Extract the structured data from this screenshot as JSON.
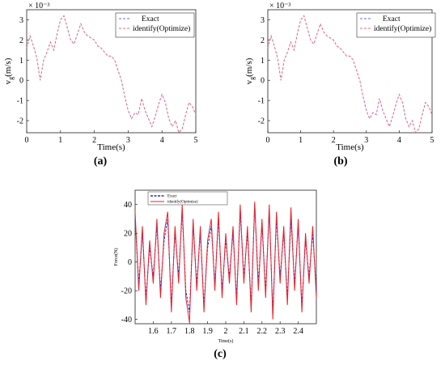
{
  "chart_data": [
    {
      "type": "line",
      "panel_label": "(a)",
      "ylabel_main": "v",
      "ylabel_sub": "g",
      "ylabel_unit": "(m/s)",
      "y_exponent": "× 10⁻³",
      "xlabel": "Time(s)",
      "xlim": [
        0,
        5
      ],
      "ylim": [
        -2.6,
        3.5
      ],
      "xticks": [
        0,
        1,
        2,
        3,
        4,
        5
      ],
      "yticks": [
        -2,
        -1,
        0,
        1,
        2,
        3
      ],
      "legend_position": "top-right",
      "series": [
        {
          "name": "Exact",
          "color": "#6a6af5",
          "style": "dashed",
          "x": [
            0,
            0.1,
            0.2,
            0.3,
            0.4,
            0.5,
            0.6,
            0.7,
            0.8,
            0.9,
            1.0,
            1.1,
            1.2,
            1.3,
            1.4,
            1.5,
            1.6,
            1.7,
            1.8,
            1.9,
            2.0,
            2.1,
            2.2,
            2.3,
            2.4,
            2.5,
            2.6,
            2.7,
            2.8,
            2.9,
            3.0,
            3.1,
            3.2,
            3.3,
            3.4,
            3.5,
            3.6,
            3.7,
            3.8,
            3.9,
            4.0,
            4.1,
            4.2,
            4.3,
            4.4,
            4.5,
            4.6,
            4.7,
            4.8,
            4.9,
            5.0
          ],
          "y": [
            1.6,
            2.2,
            1.7,
            1.1,
            0.0,
            1.0,
            1.4,
            1.9,
            1.5,
            2.3,
            3.0,
            3.2,
            2.6,
            2.0,
            1.8,
            2.3,
            2.8,
            2.4,
            2.2,
            2.1,
            2.0,
            1.7,
            1.6,
            1.4,
            1.2,
            1.2,
            1.0,
            0.5,
            0.0,
            -0.8,
            -1.5,
            -1.9,
            -1.6,
            -1.7,
            -0.9,
            -1.5,
            -1.9,
            -2.3,
            -1.8,
            -1.2,
            -0.7,
            -1.1,
            -1.9,
            -2.3,
            -2.0,
            -2.6,
            -2.4,
            -1.7,
            -1.1,
            -1.3,
            -1.7
          ]
        },
        {
          "name": "identify(Optimize)",
          "color": "#f26d7d",
          "style": "dashed",
          "x": [
            0,
            0.1,
            0.2,
            0.3,
            0.4,
            0.5,
            0.6,
            0.7,
            0.8,
            0.9,
            1.0,
            1.1,
            1.2,
            1.3,
            1.4,
            1.5,
            1.6,
            1.7,
            1.8,
            1.9,
            2.0,
            2.1,
            2.2,
            2.3,
            2.4,
            2.5,
            2.6,
            2.7,
            2.8,
            2.9,
            3.0,
            3.1,
            3.2,
            3.3,
            3.4,
            3.5,
            3.6,
            3.7,
            3.8,
            3.9,
            4.0,
            4.1,
            4.2,
            4.3,
            4.4,
            4.5,
            4.6,
            4.7,
            4.8,
            4.9,
            5.0
          ],
          "y": [
            1.6,
            2.2,
            1.7,
            1.1,
            0.0,
            1.0,
            1.4,
            1.9,
            1.5,
            2.3,
            3.0,
            3.2,
            2.6,
            2.0,
            1.8,
            2.3,
            2.8,
            2.4,
            2.2,
            2.1,
            2.0,
            1.7,
            1.6,
            1.4,
            1.2,
            1.2,
            1.0,
            0.5,
            0.0,
            -0.8,
            -1.5,
            -1.9,
            -1.6,
            -1.7,
            -0.9,
            -1.5,
            -1.9,
            -2.3,
            -1.8,
            -1.2,
            -0.7,
            -1.1,
            -1.9,
            -2.3,
            -2.0,
            -2.6,
            -2.4,
            -1.7,
            -1.1,
            -1.3,
            -1.7
          ]
        }
      ]
    },
    {
      "type": "line",
      "panel_label": "(b)",
      "ylabel_main": "v",
      "ylabel_sub": "g",
      "ylabel_unit": "(m/s)",
      "y_exponent": "× 10⁻³",
      "xlabel": "Time(s)",
      "xlim": [
        0,
        5
      ],
      "ylim": [
        -2.6,
        3.5
      ],
      "xticks": [
        0,
        1,
        2,
        3,
        4,
        5
      ],
      "yticks": [
        -2,
        -1,
        0,
        1,
        2,
        3
      ],
      "legend_position": "top-right",
      "series": [
        {
          "name": "Exact",
          "color": "#6a6af5",
          "style": "dashed",
          "x": [
            0,
            0.1,
            0.2,
            0.3,
            0.4,
            0.5,
            0.6,
            0.7,
            0.8,
            0.9,
            1.0,
            1.1,
            1.2,
            1.3,
            1.4,
            1.5,
            1.6,
            1.7,
            1.8,
            1.9,
            2.0,
            2.1,
            2.2,
            2.3,
            2.4,
            2.5,
            2.6,
            2.7,
            2.8,
            2.9,
            3.0,
            3.1,
            3.2,
            3.3,
            3.4,
            3.5,
            3.6,
            3.7,
            3.8,
            3.9,
            4.0,
            4.1,
            4.2,
            4.3,
            4.4,
            4.5,
            4.6,
            4.7,
            4.8,
            4.9,
            5.0
          ],
          "y": [
            1.6,
            2.2,
            1.7,
            1.1,
            0.0,
            1.0,
            1.4,
            1.9,
            1.5,
            2.3,
            3.0,
            3.2,
            2.6,
            2.0,
            1.8,
            2.3,
            2.8,
            2.4,
            2.2,
            2.1,
            2.0,
            1.7,
            1.6,
            1.4,
            1.2,
            1.2,
            1.0,
            0.5,
            0.0,
            -0.8,
            -1.5,
            -1.9,
            -1.6,
            -1.7,
            -0.9,
            -1.5,
            -1.9,
            -2.3,
            -1.8,
            -1.2,
            -0.7,
            -1.1,
            -1.9,
            -2.3,
            -2.0,
            -2.6,
            -2.4,
            -1.7,
            -1.1,
            -1.3,
            -1.7
          ]
        },
        {
          "name": "identify(Optimize)",
          "color": "#f26d7d",
          "style": "dashed",
          "x": [
            0,
            0.1,
            0.2,
            0.3,
            0.4,
            0.5,
            0.6,
            0.7,
            0.8,
            0.9,
            1.0,
            1.1,
            1.2,
            1.3,
            1.4,
            1.5,
            1.6,
            1.7,
            1.8,
            1.9,
            2.0,
            2.1,
            2.2,
            2.3,
            2.4,
            2.5,
            2.6,
            2.7,
            2.8,
            2.9,
            3.0,
            3.1,
            3.2,
            3.3,
            3.4,
            3.5,
            3.6,
            3.7,
            3.8,
            3.9,
            4.0,
            4.1,
            4.2,
            4.3,
            4.4,
            4.5,
            4.6,
            4.7,
            4.8,
            4.9,
            5.0
          ],
          "y": [
            1.6,
            2.2,
            1.7,
            1.1,
            0.0,
            1.0,
            1.4,
            1.9,
            1.5,
            2.3,
            3.0,
            3.2,
            2.6,
            2.0,
            1.8,
            2.3,
            2.8,
            2.4,
            2.2,
            2.1,
            2.0,
            1.7,
            1.6,
            1.4,
            1.2,
            1.2,
            1.0,
            0.5,
            0.0,
            -0.8,
            -1.5,
            -1.9,
            -1.6,
            -1.7,
            -0.9,
            -1.5,
            -1.9,
            -2.3,
            -1.8,
            -1.2,
            -0.7,
            -1.1,
            -1.9,
            -2.3,
            -2.0,
            -2.6,
            -2.4,
            -1.7,
            -1.1,
            -1.3,
            -1.7
          ]
        }
      ]
    },
    {
      "type": "line",
      "panel_label": "(c)",
      "ylabel": "Force(N)",
      "xlabel": "Time(s)",
      "xlim": [
        1.5,
        2.5
      ],
      "ylim": [
        -43,
        50
      ],
      "xticks": [
        1.6,
        1.7,
        1.8,
        1.9,
        2.0,
        2.1,
        2.2,
        2.3,
        2.4
      ],
      "xtick_labels": [
        "1.6",
        "1.7",
        "1.8",
        "1.9",
        "2",
        "2.1",
        "2.2",
        "2.3",
        "2.4"
      ],
      "yticks": [
        -40,
        -20,
        0,
        20,
        40
      ],
      "legend_position": "top-left",
      "series": [
        {
          "name": "Exact",
          "color": "#1f2fd6",
          "style": "dashed",
          "x": [
            1.5,
            1.52,
            1.54,
            1.56,
            1.58,
            1.6,
            1.62,
            1.64,
            1.66,
            1.68,
            1.7,
            1.72,
            1.74,
            1.76,
            1.78,
            1.8,
            1.82,
            1.84,
            1.86,
            1.88,
            1.9,
            1.92,
            1.94,
            1.96,
            1.98,
            2.0,
            2.02,
            2.04,
            2.06,
            2.08,
            2.1,
            2.12,
            2.14,
            2.16,
            2.18,
            2.2,
            2.22,
            2.24,
            2.26,
            2.28,
            2.3,
            2.32,
            2.34,
            2.36,
            2.38,
            2.4,
            2.42,
            2.44,
            2.46,
            2.48,
            2.5
          ],
          "y": [
            30,
            -15,
            20,
            -25,
            10,
            -10,
            25,
            -20,
            15,
            30,
            -30,
            20,
            -10,
            35,
            -20,
            -35,
            25,
            -15,
            20,
            -30,
            10,
            25,
            -15,
            30,
            -20,
            15,
            -10,
            20,
            -25,
            35,
            -10,
            20,
            -30,
            40,
            -15,
            25,
            -20,
            35,
            -35,
            30,
            -10,
            20,
            -25,
            30,
            -15,
            25,
            -30,
            15,
            -10,
            20,
            -20
          ]
        },
        {
          "name": "identify(Optimize)",
          "color": "#e8202a",
          "style": "solid",
          "x": [
            1.5,
            1.52,
            1.54,
            1.56,
            1.58,
            1.6,
            1.62,
            1.64,
            1.66,
            1.68,
            1.7,
            1.72,
            1.74,
            1.76,
            1.78,
            1.8,
            1.82,
            1.84,
            1.86,
            1.88,
            1.9,
            1.92,
            1.94,
            1.96,
            1.98,
            2.0,
            2.02,
            2.04,
            2.06,
            2.08,
            2.1,
            2.12,
            2.14,
            2.16,
            2.18,
            2.2,
            2.22,
            2.24,
            2.26,
            2.28,
            2.3,
            2.32,
            2.34,
            2.36,
            2.38,
            2.4,
            2.42,
            2.44,
            2.46,
            2.48,
            2.5
          ],
          "y": [
            35,
            -20,
            25,
            -30,
            15,
            -15,
            30,
            -25,
            20,
            35,
            -35,
            25,
            -15,
            40,
            -25,
            -42,
            30,
            -20,
            25,
            -35,
            15,
            30,
            -20,
            35,
            -25,
            20,
            -15,
            25,
            -30,
            40,
            -15,
            25,
            -35,
            42,
            -20,
            30,
            -25,
            40,
            -40,
            35,
            -15,
            25,
            -30,
            38,
            -20,
            30,
            -35,
            20,
            -15,
            25,
            -25
          ]
        }
      ]
    }
  ]
}
